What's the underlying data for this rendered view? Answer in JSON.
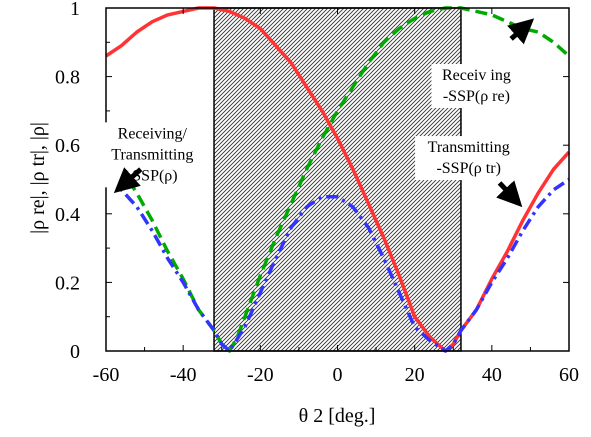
{
  "chart_data": {
    "type": "line",
    "xlabel": "θ 2  [deg.]",
    "ylabel": "|ρ re|,  |ρ tr|,  |ρ|",
    "xlim": [
      -60,
      60
    ],
    "ylim": [
      0,
      1
    ],
    "x_ticks": [
      "-60",
      "-40",
      "-20",
      "0",
      "20",
      "40",
      "60"
    ],
    "y_ticks": [
      "0",
      "0.2",
      "0.4",
      "0.6",
      "0.8",
      "1"
    ],
    "shaded_region": [
      -32,
      32
    ],
    "grid": false,
    "series": [
      {
        "name": "-SSP(ρ re)",
        "color": "#00aa00",
        "style": "dashed",
        "x": [
          -60,
          -56,
          -52,
          -48,
          -44,
          -40,
          -36,
          -32,
          -30,
          -28,
          -26,
          -24,
          -20,
          -16,
          -12,
          -8,
          -4,
          0,
          4,
          8,
          12,
          16,
          20,
          24,
          28,
          32,
          36,
          40,
          44,
          48,
          52,
          56,
          60
        ],
        "y": [
          0.58,
          0.53,
          0.46,
          0.38,
          0.29,
          0.21,
          0.12,
          0.06,
          0.02,
          0.0,
          0.04,
          0.1,
          0.22,
          0.33,
          0.43,
          0.53,
          0.62,
          0.7,
          0.77,
          0.84,
          0.9,
          0.94,
          0.97,
          0.99,
          1.0,
          1.0,
          0.99,
          0.98,
          0.96,
          0.94,
          0.93,
          0.9,
          0.86
        ]
      },
      {
        "name": "-SSP(ρ tr)",
        "color": "#ff3333",
        "style": "solid",
        "x": [
          -60,
          -56,
          -52,
          -48,
          -44,
          -40,
          -36,
          -32,
          -28,
          -24,
          -20,
          -16,
          -12,
          -8,
          -4,
          0,
          4,
          8,
          12,
          16,
          20,
          24,
          28,
          30,
          32,
          36,
          40,
          44,
          48,
          52,
          56,
          60
        ],
        "y": [
          0.86,
          0.89,
          0.93,
          0.96,
          0.98,
          0.99,
          1.0,
          1.0,
          0.99,
          0.97,
          0.94,
          0.89,
          0.84,
          0.77,
          0.7,
          0.62,
          0.53,
          0.43,
          0.33,
          0.22,
          0.1,
          0.04,
          0.0,
          0.02,
          0.06,
          0.12,
          0.21,
          0.29,
          0.38,
          0.46,
          0.53,
          0.58
        ]
      },
      {
        "name": "-SSP(ρ)",
        "color": "#3333ff",
        "style": "dashdot",
        "x": [
          -60,
          -56,
          -52,
          -48,
          -44,
          -40,
          -36,
          -32,
          -30,
          -28,
          -24,
          -20,
          -16,
          -12,
          -8,
          -4,
          0,
          4,
          8,
          12,
          16,
          20,
          24,
          28,
          30,
          32,
          36,
          40,
          44,
          48,
          52,
          56,
          60
        ],
        "y": [
          0.5,
          0.47,
          0.42,
          0.35,
          0.27,
          0.2,
          0.12,
          0.06,
          0.02,
          0.0,
          0.07,
          0.17,
          0.27,
          0.36,
          0.42,
          0.45,
          0.45,
          0.42,
          0.36,
          0.27,
          0.17,
          0.07,
          0.03,
          0.0,
          0.02,
          0.06,
          0.12,
          0.2,
          0.27,
          0.35,
          0.42,
          0.47,
          0.5
        ]
      }
    ],
    "annotations": [
      {
        "lines": [
          "Receiving/",
          "Transmitting",
          "-SSP(ρ)"
        ],
        "anchor": [
          -48,
          0.62
        ],
        "arrow_from": [
          -51,
          0.53
        ],
        "arrow_to": [
          -57,
          0.47
        ]
      },
      {
        "lines": [
          "Receiv ing",
          "-SSP(ρ re)"
        ],
        "anchor": [
          36,
          0.79
        ],
        "arrow_from": [
          45,
          0.91
        ],
        "arrow_to": [
          50,
          0.96
        ]
      },
      {
        "lines": [
          "Transmitting",
          "-SSP(ρ tr)"
        ],
        "anchor": [
          34,
          0.58
        ],
        "arrow_from": [
          42,
          0.49
        ],
        "arrow_to": [
          47,
          0.43
        ]
      }
    ]
  }
}
